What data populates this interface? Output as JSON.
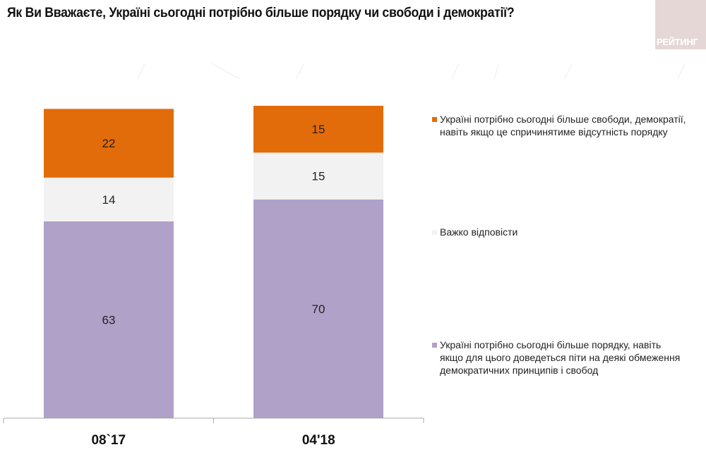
{
  "title": "Як Ви Вважаєте, Україні сьогодні потрібно більше порядку чи свободи і демократії?",
  "logo_text": "РЕЙТИНГ",
  "chart_data": {
    "type": "bar",
    "stacked": true,
    "title": "Як Ви Вважаєте, Україні сьогодні потрібно більше порядку чи свободи і демократії?",
    "categories": [
      "08`17",
      "04'18"
    ],
    "ylim": [
      0,
      100
    ],
    "grid": false,
    "legend_placement": "right",
    "series": [
      {
        "name": "Україні потрібно сьогодні більше порядку, навіть якщо для цього доведеться піти на деякі обмеження демократичних принципів і свобод",
        "values": [
          63,
          70
        ],
        "color": "#b0a1c8"
      },
      {
        "name": "Важко відповісти",
        "values": [
          14,
          15
        ],
        "color": "#f2f2f2"
      },
      {
        "name": "Україні потрібно сьогодні більше свободи, демократії, навіть якщо це спричинятиме відсутність порядку",
        "values": [
          22,
          15
        ],
        "color": "#e36c0a"
      }
    ]
  }
}
